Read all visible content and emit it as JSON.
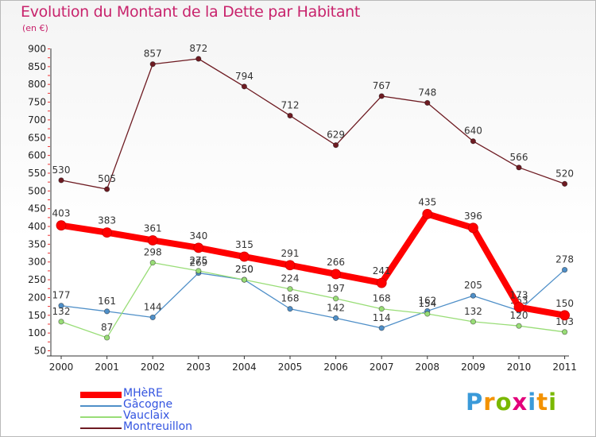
{
  "chart_data": {
    "type": "line",
    "title": "Evolution du Montant de la Dette par Habitant",
    "subtitle": "(en €)",
    "xlabel": "",
    "ylabel": "",
    "x": [
      "2000",
      "2001",
      "2002",
      "2003",
      "2004",
      "2005",
      "2006",
      "2007",
      "2008",
      "2009",
      "2010",
      "2011"
    ],
    "yticks": [
      50,
      100,
      150,
      200,
      250,
      300,
      350,
      400,
      450,
      500,
      550,
      600,
      650,
      700,
      750,
      800,
      850,
      900
    ],
    "ylim": [
      50,
      900
    ],
    "grid": false,
    "legend_position": "bottom-left",
    "series": [
      {
        "name": "MHèRE",
        "color": "#ff0000",
        "values": [
          403,
          383,
          361,
          340,
          315,
          291,
          266,
          241,
          435,
          396,
          173,
          150
        ],
        "labels": [
          "403",
          "383",
          "361",
          "340",
          "315",
          "291",
          "266",
          "241",
          "435",
          "396",
          "173",
          "150"
        ]
      },
      {
        "name": "Gâcogne",
        "color": "#4f8fc8",
        "values": [
          177,
          161,
          144,
          269,
          250,
          168,
          142,
          114,
          162,
          205,
          163,
          278
        ],
        "labels": [
          "177",
          "161",
          "144",
          "269",
          "250",
          "168",
          "142",
          "114",
          "162",
          "205",
          "163",
          "278"
        ]
      },
      {
        "name": "Vauclaix",
        "color": "#99dd77",
        "values": [
          132,
          87,
          298,
          275,
          250,
          224,
          197,
          168,
          154,
          132,
          120,
          103
        ],
        "labels": [
          "132",
          "87",
          "298",
          "275",
          "250",
          "224",
          "197",
          "168",
          "154",
          "132",
          "120",
          "103"
        ]
      },
      {
        "name": "Montreuillon",
        "color": "#6e1b22",
        "values": [
          530,
          505,
          857,
          872,
          794,
          712,
          629,
          767,
          748,
          640,
          566,
          520
        ],
        "labels": [
          "530",
          "505",
          "857",
          "872",
          "794",
          "712",
          "629",
          "767",
          "748",
          "640",
          "566",
          "520"
        ]
      }
    ]
  },
  "logo": {
    "letters": [
      "P",
      "r",
      "o",
      "x",
      "i",
      "t",
      "i"
    ],
    "colors": [
      "#3a9ad9",
      "#f39200",
      "#7ab800",
      "#e3007b",
      "#3a9ad9",
      "#f39200",
      "#7ab800"
    ]
  }
}
